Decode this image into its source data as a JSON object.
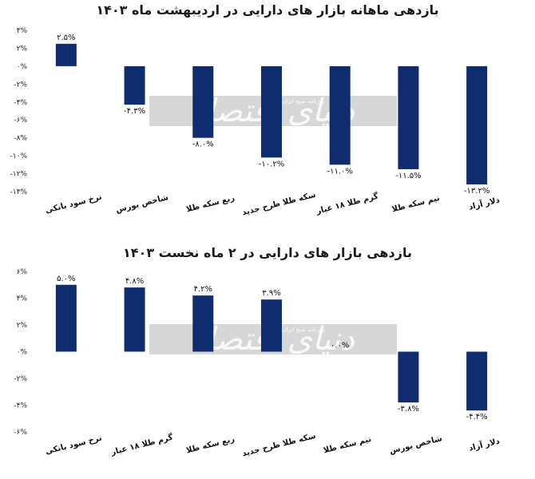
{
  "watermark": {
    "brand": "دنیای اقتصاد",
    "tagline": "روزنامه صبح ایران"
  },
  "chart_data": [
    {
      "type": "bar",
      "title": "بازدهی ماهانه بازار های دارایی در اردیبهشت ماه ۱۴۰۳",
      "categories": [
        "نرخ سود بانکی",
        "شاخص بورس",
        "ربع سکه طلا",
        "سکه طلا طرح جدید",
        "گرم طلا ۱۸ عیار",
        "نیم سکه طلا",
        "دلار آزاد"
      ],
      "values": [
        2.5,
        -4.3,
        -8.0,
        -10.2,
        -11.0,
        -11.5,
        -13.2
      ],
      "value_labels": [
        "۲.۵%",
        "-۴.۳%",
        "-۸.۰%",
        "-۱۰.۲%",
        "-۱۱.۰%",
        "-۱۱.۵%",
        "-۱۳.۲%"
      ],
      "ylim": [
        -14,
        4
      ],
      "yticks": [
        4,
        2,
        0,
        -2,
        -4,
        -6,
        -8,
        -10,
        -12,
        -14
      ],
      "ytick_labels": [
        "۴%",
        "۲%",
        "۰%",
        "-۲%",
        "-۴%",
        "-۶%",
        "-۸%",
        "-۱۰%",
        "-۱۲%",
        "-۱۴%"
      ],
      "bar_color": "#0f2d6e",
      "grid": false,
      "xlabel": "",
      "ylabel": ""
    },
    {
      "type": "bar",
      "title": "بازدهی بازار های دارایی در ۲ ماه نخست ۱۴۰۳",
      "categories": [
        "نرخ سود بانکی",
        "گرم طلا ۱۸ عیار",
        "ربع سکه طلا",
        "سکه طلا طرح جدید",
        "نیم سکه طلا",
        "شاخص بورس",
        "دلار آزاد"
      ],
      "values": [
        5.0,
        4.8,
        4.2,
        3.9,
        0.0,
        -3.8,
        -4.4
      ],
      "value_labels": [
        "۵.۰%",
        "۴.۸%",
        "۴.۲%",
        "۳.۹%",
        "۰.۰%",
        "-۳.۸%",
        "-۴.۴%"
      ],
      "ylim": [
        -6,
        6
      ],
      "yticks": [
        6,
        4,
        2,
        0,
        -2,
        -4,
        -6
      ],
      "ytick_labels": [
        "۶%",
        "۴%",
        "۲%",
        "۰%",
        "-۲%",
        "-۴%",
        "-۶%"
      ],
      "bar_color": "#0f2d6e",
      "grid": false,
      "xlabel": "",
      "ylabel": ""
    }
  ]
}
